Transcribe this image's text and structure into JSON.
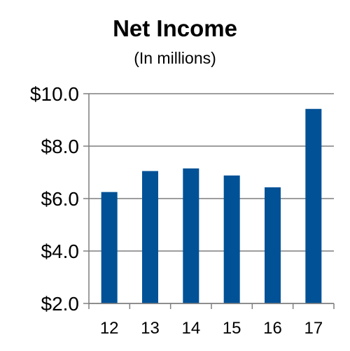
{
  "colors": {
    "bar": "#005196",
    "gridline": "#7f7f7f",
    "axis": "#7f7f7f"
  },
  "chart_data": {
    "type": "bar",
    "title": "Net Income",
    "subtitle": "(In millions)",
    "xlabel": "",
    "ylabel": "",
    "categories": [
      "12",
      "13",
      "14",
      "15",
      "16",
      "17"
    ],
    "values": [
      6.25,
      7.05,
      7.15,
      6.88,
      6.43,
      9.42
    ],
    "ylim": [
      2.0,
      10.0
    ],
    "yticks": [
      2.0,
      4.0,
      6.0,
      8.0,
      10.0
    ],
    "ytick_labels": [
      "$2.0",
      "$4.0",
      "$6.0",
      "$8.0",
      "$10.0"
    ],
    "grid": true,
    "legend": "none"
  }
}
